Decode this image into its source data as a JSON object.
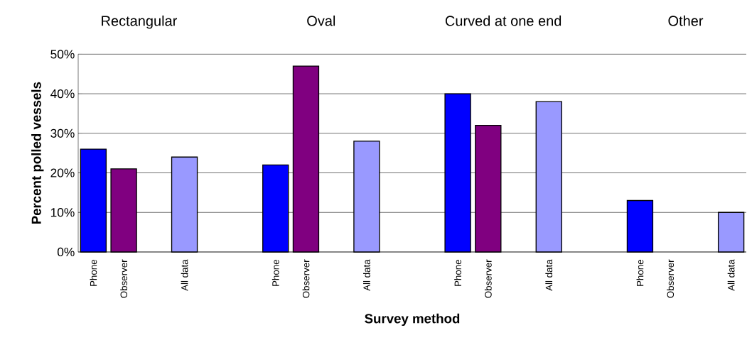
{
  "chart_data": {
    "type": "bar",
    "xlabel": "Survey method",
    "ylabel": "Percent polled vessels",
    "categories": [
      "Phone",
      "Observer",
      null,
      "All data",
      null,
      null,
      "Phone",
      "Observer",
      null,
      "All data",
      null,
      null,
      "Phone",
      "Observer",
      null,
      "All data",
      null,
      null,
      "Phone",
      "Observer",
      null,
      "All data"
    ],
    "values": [
      26,
      21,
      null,
      24,
      null,
      null,
      22,
      47,
      null,
      28,
      null,
      null,
      40,
      32,
      null,
      38,
      null,
      null,
      13,
      null,
      null,
      10
    ],
    "colors": [
      "#0000ff",
      "#800080",
      "#ffffff",
      "#9999ff",
      "#ffffff",
      "#ffffff",
      "#0000ff",
      "#800080",
      "#ffffff",
      "#9999ff",
      "#ffffff",
      "#ffffff",
      "#0000ff",
      "#800080",
      "#ffffff",
      "#9999ff",
      "#ffffff",
      "#ffffff",
      "#0000ff",
      "#800080",
      "#ffffff",
      "#9999ff"
    ],
    "ylim": [
      0,
      50
    ],
    "yticks": [
      {
        "value": 0,
        "label": "0%"
      },
      {
        "value": 10,
        "label": "10%"
      },
      {
        "value": 20,
        "label": "20%"
      },
      {
        "value": 30,
        "label": "30%"
      },
      {
        "value": 40,
        "label": "40%"
      },
      {
        "value": 50,
        "label": "50%"
      }
    ],
    "grid": "y",
    "annotations": [
      "Rectangular",
      "Oval",
      "Curved at one end",
      "Other"
    ]
  }
}
